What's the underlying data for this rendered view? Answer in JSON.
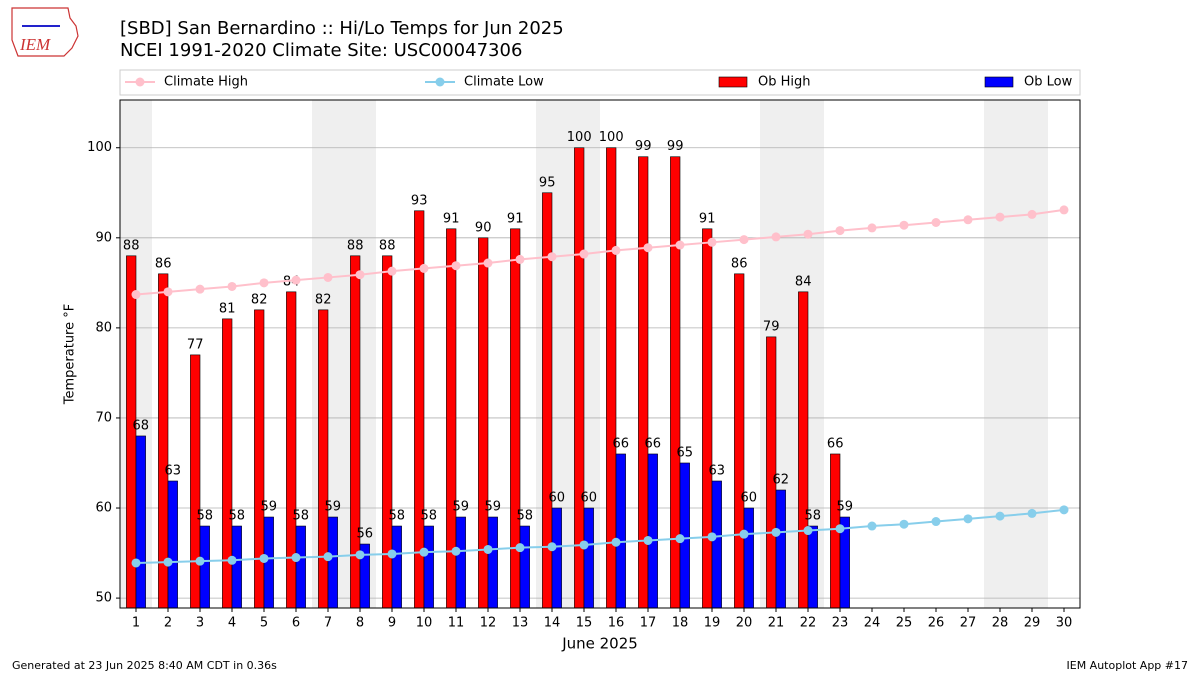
{
  "chart_data": {
    "type": "bar",
    "title": "[SBD] San Bernardino :: Hi/Lo Temps for Jun 2025",
    "subtitle": "NCEI 1991-2020 Climate Site: USC00047306",
    "logo_text": "IEM",
    "x_label": "June 2025",
    "y_label": "Temperature °F",
    "footer_left": "Generated at 23 Jun 2025 8:40 AM CDT in 0.36s",
    "footer_right": "IEM Autoplot App #17",
    "x": [
      1,
      2,
      3,
      4,
      5,
      6,
      7,
      8,
      9,
      10,
      11,
      12,
      13,
      14,
      15,
      16,
      17,
      18,
      19,
      20,
      21,
      22,
      23,
      24,
      25,
      26,
      27,
      28,
      29,
      30
    ],
    "xlim": [
      0.5,
      30.5
    ],
    "xticks": [
      1,
      2,
      3,
      4,
      5,
      6,
      7,
      8,
      9,
      10,
      11,
      12,
      13,
      14,
      15,
      16,
      17,
      18,
      19,
      20,
      21,
      22,
      23,
      24,
      25,
      26,
      27,
      28,
      29,
      30
    ],
    "ylim": [
      48.9,
      105.3
    ],
    "yticks": [
      50,
      60,
      70,
      80,
      90,
      100
    ],
    "grid": true,
    "legend": "top",
    "series": [
      {
        "name": "Climate High",
        "type": "line",
        "color": "#ffc0cb",
        "values": [
          83.7,
          84.0,
          84.3,
          84.6,
          85.0,
          85.3,
          85.6,
          85.9,
          86.3,
          86.6,
          86.9,
          87.2,
          87.6,
          87.9,
          88.2,
          88.6,
          88.9,
          89.2,
          89.5,
          89.8,
          90.1,
          90.4,
          90.8,
          91.1,
          91.4,
          91.7,
          92.0,
          92.3,
          92.6,
          93.1
        ]
      },
      {
        "name": "Climate Low",
        "type": "line",
        "color": "#87ceeb",
        "values": [
          53.9,
          54.0,
          54.1,
          54.2,
          54.4,
          54.5,
          54.6,
          54.8,
          54.9,
          55.1,
          55.2,
          55.4,
          55.6,
          55.7,
          55.9,
          56.2,
          56.4,
          56.6,
          56.8,
          57.1,
          57.3,
          57.5,
          57.7,
          58.0,
          58.2,
          58.5,
          58.8,
          59.1,
          59.4,
          59.8
        ]
      },
      {
        "name": "Ob High",
        "type": "bar",
        "color": "#ff0000",
        "values": [
          88,
          86,
          77,
          81,
          82,
          84,
          82,
          88,
          88,
          93,
          91,
          90,
          91,
          95,
          100,
          100,
          99,
          99,
          91,
          86,
          79,
          84,
          66,
          null,
          null,
          null,
          null,
          null,
          null,
          null
        ]
      },
      {
        "name": "Ob Low",
        "type": "bar",
        "color": "#0000ff",
        "values": [
          68,
          63,
          58,
          58,
          59,
          58,
          59,
          56,
          58,
          58,
          59,
          59,
          58,
          60,
          60,
          66,
          66,
          65,
          63,
          60,
          62,
          58,
          59,
          null,
          null,
          null,
          null,
          null,
          null,
          null
        ]
      }
    ]
  }
}
